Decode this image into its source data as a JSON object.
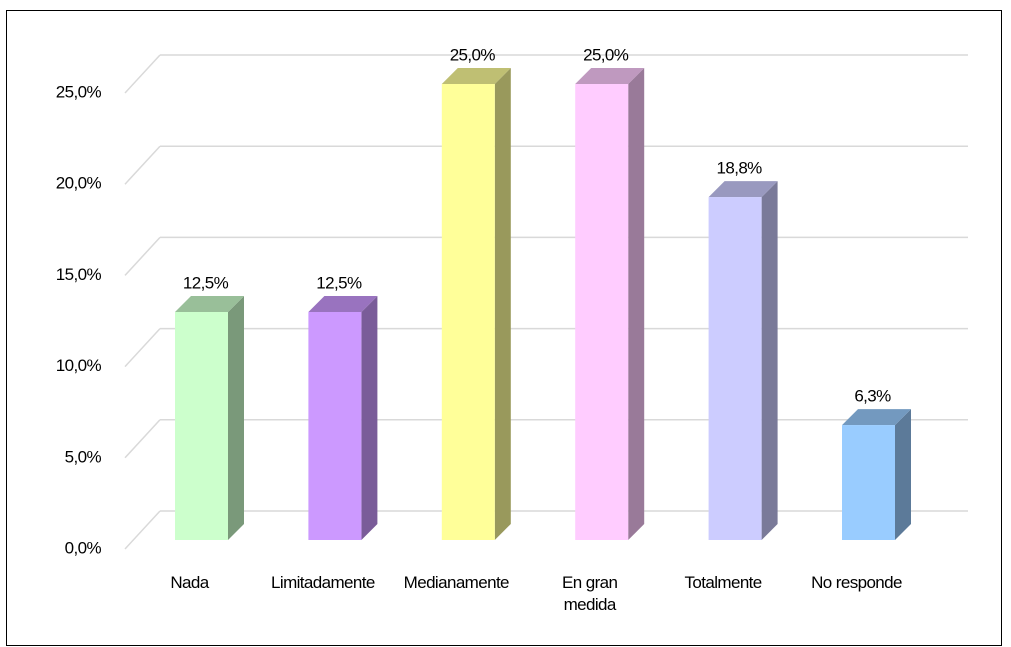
{
  "chart_data": {
    "type": "bar3d",
    "categories": [
      "Nada",
      "Limitadamente",
      "Medianamente",
      "En gran medida",
      "Totalmente",
      "No responde"
    ],
    "values": [
      12.5,
      12.5,
      25.0,
      25.0,
      18.8,
      6.3
    ],
    "value_labels": [
      "12,5%",
      "12,5%",
      "25,0%",
      "25,0%",
      "18,8%",
      "6,3%"
    ],
    "colors": [
      "#ccffcc",
      "#cc99ff",
      "#ffff99",
      "#ffccff",
      "#ccccff",
      "#99ccff"
    ],
    "ylim": [
      0,
      25
    ],
    "yticks": [
      {
        "value": 0,
        "label": "0,0%"
      },
      {
        "value": 5,
        "label": "5,0%"
      },
      {
        "value": 10,
        "label": "10,0%"
      },
      {
        "value": 15,
        "label": "15,0%"
      },
      {
        "value": 20,
        "label": "20,0%"
      },
      {
        "value": 25,
        "label": "25,0%"
      }
    ],
    "grid": true
  }
}
